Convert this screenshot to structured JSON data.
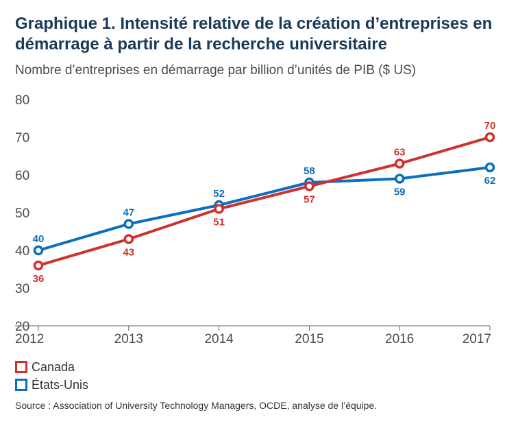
{
  "header": {
    "title": "Graphique 1. Intensité relative de la création d’entreprises en démarrage à partir de la recherche universitaire",
    "subtitle": "Nombre d’entreprises en démarrage par billion d’unités de PIB ($ US)"
  },
  "footer": {
    "source": "Source : Association of University Technology Managers, OCDE, analyse de l’équipe."
  },
  "chart_data": {
    "type": "line",
    "title": "Graphique 1. Intensité relative de la création d’entreprises en démarrage à partir de la recherche universitaire",
    "subtitle": "Nombre d’entreprises en démarrage par billion d’unités de PIB ($ US)",
    "xlabel": "",
    "ylabel": "",
    "x": [
      "2012",
      "2013",
      "2014",
      "2015",
      "2016",
      "2017"
    ],
    "ylim": [
      20,
      80
    ],
    "yticks": [
      20,
      30,
      40,
      50,
      60,
      70,
      80
    ],
    "grid": false,
    "legend_position": "bottom-left",
    "series": [
      {
        "name": "Canada",
        "color": "#d0312d",
        "values": [
          36,
          43,
          51,
          57,
          63,
          70
        ],
        "labels": [
          "36",
          "43",
          "51",
          "57",
          "63",
          "70"
        ],
        "label_side": [
          "below",
          "below",
          "below",
          "below",
          "above",
          "above"
        ]
      },
      {
        "name": "États-Unis",
        "color": "#0b6fc0",
        "values": [
          40,
          47,
          52,
          58,
          59,
          62
        ],
        "labels": [
          "40",
          "47",
          "52",
          "58",
          "59",
          "62"
        ],
        "label_side": [
          "above",
          "above",
          "above",
          "above",
          "below",
          "below"
        ]
      }
    ]
  }
}
